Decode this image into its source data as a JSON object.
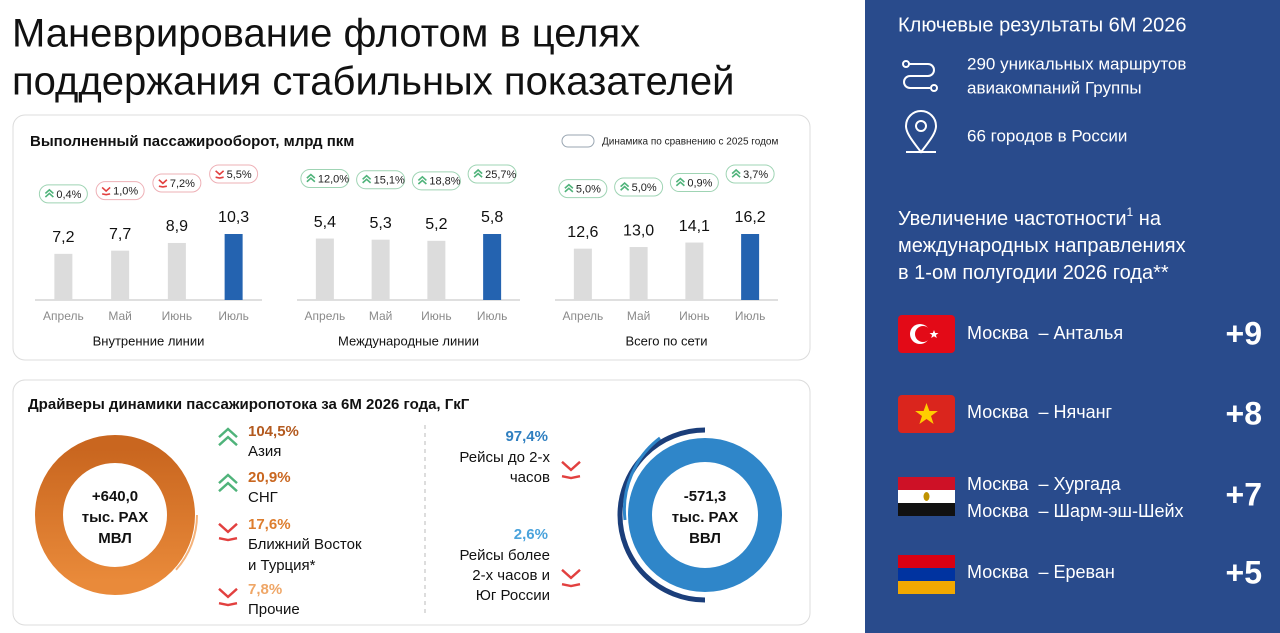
{
  "title_lines": [
    "Маневрирование флотом в целях",
    "поддержания стабильных показателей"
  ],
  "panel_title": "Выполненный пассажирооборот, млрд пкм",
  "legend_note": "Динамика по сравнению с 2025 годом",
  "chart_data": [
    {
      "type": "bar",
      "xlabel": "Внутренние линии",
      "categories": [
        "Апрель",
        "Май",
        "Июнь",
        "Июль"
      ],
      "values": [
        7.2,
        7.7,
        8.9,
        10.3
      ],
      "value_labels": [
        "7,2",
        "7,7",
        "8,9",
        "10,3"
      ],
      "colors": [
        "#dcdcdc",
        "#dcdcdc",
        "#dcdcdc",
        "#2463b0"
      ],
      "changes": [
        0.4,
        -1.0,
        -7.2,
        -5.5
      ],
      "change_labels": [
        "0,4%",
        "1,0%",
        "7,2%",
        "5,5%"
      ]
    },
    {
      "type": "bar",
      "xlabel": "Международные линии",
      "categories": [
        "Апрель",
        "Май",
        "Июнь",
        "Июль"
      ],
      "values": [
        5.4,
        5.3,
        5.2,
        5.8
      ],
      "value_labels": [
        "5,4",
        "5,3",
        "5,2",
        "5,8"
      ],
      "colors": [
        "#dcdcdc",
        "#dcdcdc",
        "#dcdcdc",
        "#2463b0"
      ],
      "changes": [
        12.0,
        15.1,
        18.8,
        25.7
      ],
      "change_labels": [
        "12,0%",
        "15,1%",
        "18,8%",
        "25,7%"
      ]
    },
    {
      "type": "bar",
      "xlabel": "Всего по сети",
      "categories": [
        "Апрель",
        "Май",
        "Июнь",
        "Июль"
      ],
      "values": [
        12.6,
        13.0,
        14.1,
        16.2
      ],
      "value_labels": [
        "12,6",
        "13,0",
        "14,1",
        "16,2"
      ],
      "colors": [
        "#dcdcdc",
        "#dcdcdc",
        "#dcdcdc",
        "#2463b0"
      ],
      "changes": [
        5.0,
        5.0,
        0.9,
        3.7
      ],
      "change_labels": [
        "5,0%",
        "5,0%",
        "0,9%",
        "3,7%"
      ]
    }
  ],
  "drivers": {
    "title": "Драйверы динамики пассажиропотока за 6М 2026 года, ГкГ",
    "left": {
      "center_lines": [
        "+640,0",
        "тыс. PAX",
        "МВЛ"
      ],
      "items": [
        {
          "value": 104.5,
          "value_label": "104,5%",
          "label_lines": [
            "Азия"
          ],
          "direction": "up",
          "color": "#b35a1f"
        },
        {
          "value": 20.9,
          "value_label": "20,9%",
          "label_lines": [
            "СНГ"
          ],
          "direction": "up",
          "color": "#c9661f"
        },
        {
          "value": 17.6,
          "value_label": "17,6%",
          "label_lines": [
            "Ближний Восток",
            "и Турция*"
          ],
          "direction": "down",
          "color": "#dd7d2e"
        },
        {
          "value": 7.8,
          "value_label": "7,8%",
          "label_lines": [
            "Прочие"
          ],
          "direction": "down",
          "color": "#efa666"
        }
      ]
    },
    "right": {
      "center_lines": [
        "-571,3",
        "тыс. PAX",
        "ВВЛ"
      ],
      "items": [
        {
          "value": 97.4,
          "value_label": "97,4%",
          "label_lines": [
            "Рейсы до 2-х",
            "часов"
          ],
          "direction": "down",
          "color": "#2f7fc0"
        },
        {
          "value": 2.6,
          "value_label": "2,6%",
          "label_lines": [
            "Рейсы более",
            "2-х часов и",
            "Юг России"
          ],
          "direction": "down",
          "color": "#4aa3dc"
        }
      ]
    }
  },
  "sidebar": {
    "title": "Ключевые результаты 6М 2026",
    "facts": [
      {
        "lines": [
          "290 уникальных маршрутов",
          "авиакомпаний Группы"
        ]
      },
      {
        "lines": [
          "66 городов в России"
        ]
      }
    ],
    "subtitle_lines": [
      {
        "text": "Увеличение частотности",
        "sup": "1",
        "after": " на"
      },
      {
        "text": "международных направлениях"
      },
      {
        "text": "в 1-ом полугодии 2026 года**"
      }
    ],
    "routes": [
      {
        "lines": [
          "Москва  – Анталья"
        ],
        "value": {
          "value": 9,
          "label": "+9"
        }
      },
      {
        "lines": [
          "Москва  – Нячанг"
        ],
        "value": {
          "value": 8,
          "label": "+8"
        }
      },
      {
        "lines": [
          "Москва  – Хургада",
          "Москва  – Шарм-эш-Шейх"
        ],
        "value": {
          "value": 7,
          "label": "+7"
        }
      },
      {
        "lines": [
          "Москва  – Ереван"
        ],
        "value": {
          "value": 5,
          "label": "+5"
        }
      }
    ]
  }
}
